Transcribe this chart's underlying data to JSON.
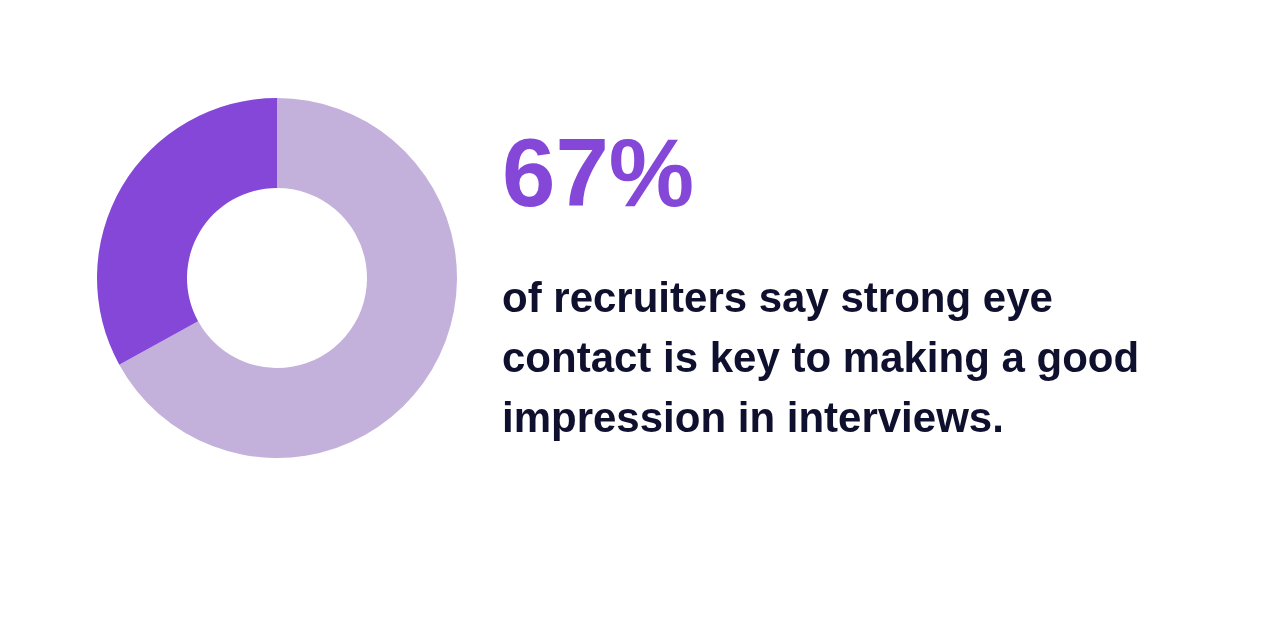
{
  "chart_data": {
    "type": "donut",
    "title": "67%",
    "subtitle": "of recruiters say strong eye contact is key to making a good impression in interviews.",
    "categories": [
      null,
      null
    ],
    "values": [
      67,
      33
    ],
    "colors": [
      "#c3b1dc",
      "#8547d8"
    ]
  }
}
